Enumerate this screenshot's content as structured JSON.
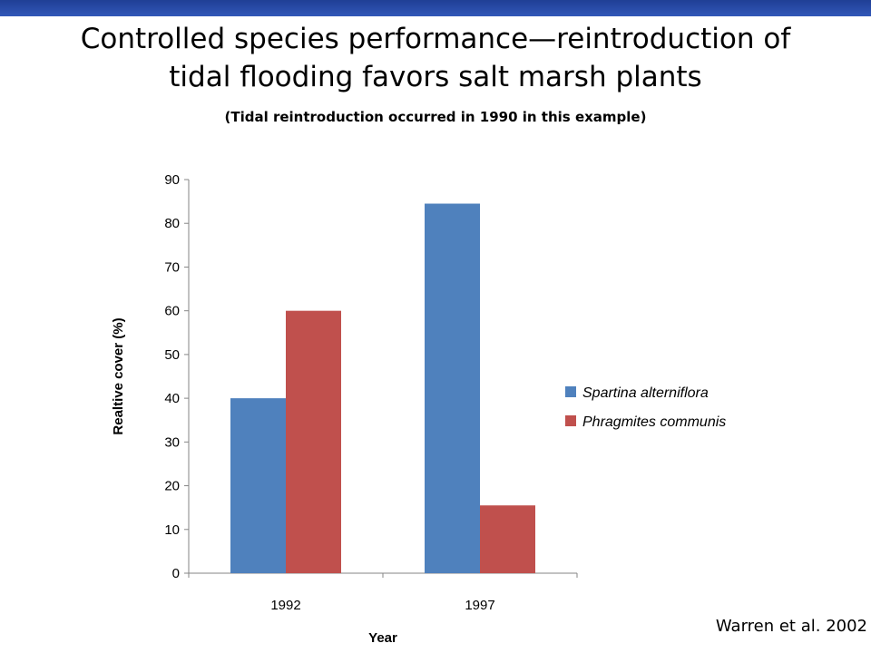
{
  "slide": {
    "title_line1": "Controlled species performance—reintroduction of",
    "title_line2": "tidal flooding favors salt marsh plants",
    "subtitle": "(Tidal reintroduction occurred in 1990 in this example)",
    "citation": "Warren et al. 2002"
  },
  "chart_data": {
    "type": "bar",
    "categories": [
      "1992",
      "1997"
    ],
    "series": [
      {
        "name": "Spartina alterniflora",
        "values": [
          40,
          84.5
        ],
        "color": "#4f81bd"
      },
      {
        "name": "Phragmites communis",
        "values": [
          60,
          15.5
        ],
        "color": "#c0504d"
      }
    ],
    "title": "",
    "xlabel": "Year",
    "ylabel": "Realtive cover (%)",
    "ylim": [
      0,
      90
    ],
    "yticks": [
      0,
      10,
      20,
      30,
      40,
      50,
      60,
      70,
      80,
      90
    ],
    "grid": false,
    "legend": "right"
  }
}
